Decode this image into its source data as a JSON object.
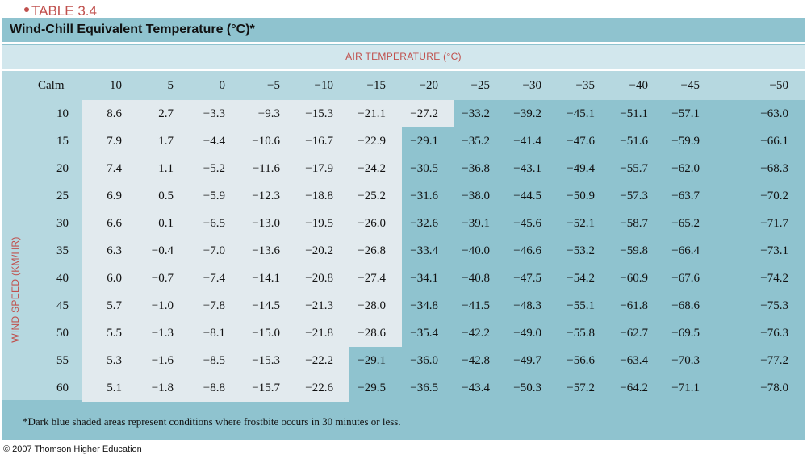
{
  "table_label": "TABLE 3.4",
  "title": "Wind-Chill Equivalent Temperature (°C)*",
  "air_temp_label": "AIR TEMPERATURE (°C)",
  "wind_speed_label": "WIND SPEED (KM/HR)",
  "calm_label": "Calm",
  "air_temps": [
    "10",
    "5",
    "0",
    "−5",
    "−10",
    "−15",
    "−20",
    "−25",
    "−30",
    "−35",
    "−40",
    "−45",
    "−50"
  ],
  "rows": [
    {
      "speed": "10",
      "values": [
        "8.6",
        "2.7",
        "−3.3",
        "−9.3",
        "−15.3",
        "−21.1",
        "−27.2",
        "−33.2",
        "−39.2",
        "−45.1",
        "−51.1",
        "−57.1",
        "−63.0"
      ],
      "frostbite_from": 7
    },
    {
      "speed": "15",
      "values": [
        "7.9",
        "1.7",
        "−4.4",
        "−10.6",
        "−16.7",
        "−22.9",
        "−29.1",
        "−35.2",
        "−41.4",
        "−47.6",
        "−51.6",
        "−59.9",
        "−66.1"
      ],
      "frostbite_from": 6
    },
    {
      "speed": "20",
      "values": [
        "7.4",
        "1.1",
        "−5.2",
        "−11.6",
        "−17.9",
        "−24.2",
        "−30.5",
        "−36.8",
        "−43.1",
        "−49.4",
        "−55.7",
        "−62.0",
        "−68.3"
      ],
      "frostbite_from": 6
    },
    {
      "speed": "25",
      "values": [
        "6.9",
        "0.5",
        "−5.9",
        "−12.3",
        "−18.8",
        "−25.2",
        "−31.6",
        "−38.0",
        "−44.5",
        "−50.9",
        "−57.3",
        "−63.7",
        "−70.2"
      ],
      "frostbite_from": 6
    },
    {
      "speed": "30",
      "values": [
        "6.6",
        "0.1",
        "−6.5",
        "−13.0",
        "−19.5",
        "−26.0",
        "−32.6",
        "−39.1",
        "−45.6",
        "−52.1",
        "−58.7",
        "−65.2",
        "−71.7"
      ],
      "frostbite_from": 6
    },
    {
      "speed": "35",
      "values": [
        "6.3",
        "−0.4",
        "−7.0",
        "−13.6",
        "−20.2",
        "−26.8",
        "−33.4",
        "−40.0",
        "−46.6",
        "−53.2",
        "−59.8",
        "−66.4",
        "−73.1"
      ],
      "frostbite_from": 6
    },
    {
      "speed": "40",
      "values": [
        "6.0",
        "−0.7",
        "−7.4",
        "−14.1",
        "−20.8",
        "−27.4",
        "−34.1",
        "−40.8",
        "−47.5",
        "−54.2",
        "−60.9",
        "−67.6",
        "−74.2"
      ],
      "frostbite_from": 6
    },
    {
      "speed": "45",
      "values": [
        "5.7",
        "−1.0",
        "−7.8",
        "−14.5",
        "−21.3",
        "−28.0",
        "−34.8",
        "−41.5",
        "−48.3",
        "−55.1",
        "−61.8",
        "−68.6",
        "−75.3"
      ],
      "frostbite_from": 6
    },
    {
      "speed": "50",
      "values": [
        "5.5",
        "−1.3",
        "−8.1",
        "−15.0",
        "−21.8",
        "−28.6",
        "−35.4",
        "−42.2",
        "−49.0",
        "−55.8",
        "−62.7",
        "−69.5",
        "−76.3"
      ],
      "frostbite_from": 6
    },
    {
      "speed": "55",
      "values": [
        "5.3",
        "−1.6",
        "−8.5",
        "−15.3",
        "−22.2",
        "−29.1",
        "−36.0",
        "−42.8",
        "−49.7",
        "−56.6",
        "−63.4",
        "−70.3",
        "−77.2"
      ],
      "frostbite_from": 5
    },
    {
      "speed": "60",
      "values": [
        "5.1",
        "−1.8",
        "−8.8",
        "−15.7",
        "−22.6",
        "−29.5",
        "−36.5",
        "−43.4",
        "−50.3",
        "−57.2",
        "−64.2",
        "−71.1",
        "−78.0"
      ],
      "frostbite_from": 5
    }
  ],
  "colors": {
    "panel": "#8fc3cf",
    "light_cells": "#e2eaee",
    "header": "#b6d8e0",
    "accent": "#c0504d"
  },
  "footnote": "*Dark blue shaded areas represent conditions where frostbite occurs in 30 minutes or less.",
  "copyright": "© 2007 Thomson Higher Education"
}
